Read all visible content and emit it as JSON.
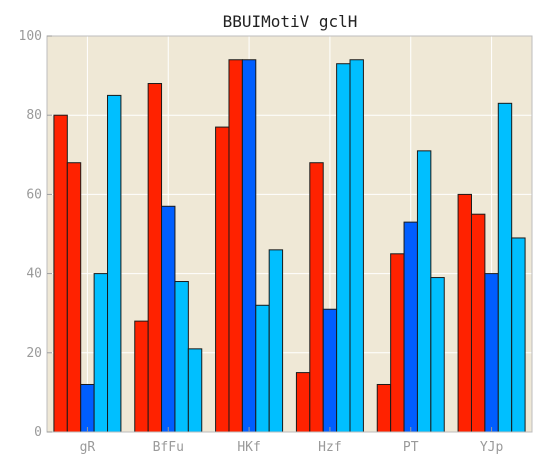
{
  "chart_data": {
    "type": "bar",
    "title": "BBUIMotiV gclH",
    "xlabel": "",
    "ylabel": "",
    "categories": [
      "gR",
      "BfFu",
      "HKf",
      "Hzf",
      "PT",
      "YJp"
    ],
    "ylim": [
      0,
      100
    ],
    "yticks": [
      0,
      20,
      40,
      60,
      80,
      100
    ],
    "grid": true,
    "legend": "none",
    "plot_background": "#efe8d6",
    "series": [
      {
        "color": "#ff2200",
        "values": [
          80,
          28,
          77,
          15,
          12,
          60
        ]
      },
      {
        "color": "#ff2200",
        "values": [
          68,
          88,
          94,
          68,
          45,
          55
        ]
      },
      {
        "color": "#005eff",
        "values": [
          12,
          57,
          94,
          31,
          53,
          40
        ]
      },
      {
        "color": "#00bfff",
        "values": [
          40,
          38,
          32,
          93,
          71,
          83
        ]
      },
      {
        "color": "#00bfff",
        "values": [
          85,
          21,
          46,
          94,
          39,
          49
        ]
      }
    ]
  }
}
